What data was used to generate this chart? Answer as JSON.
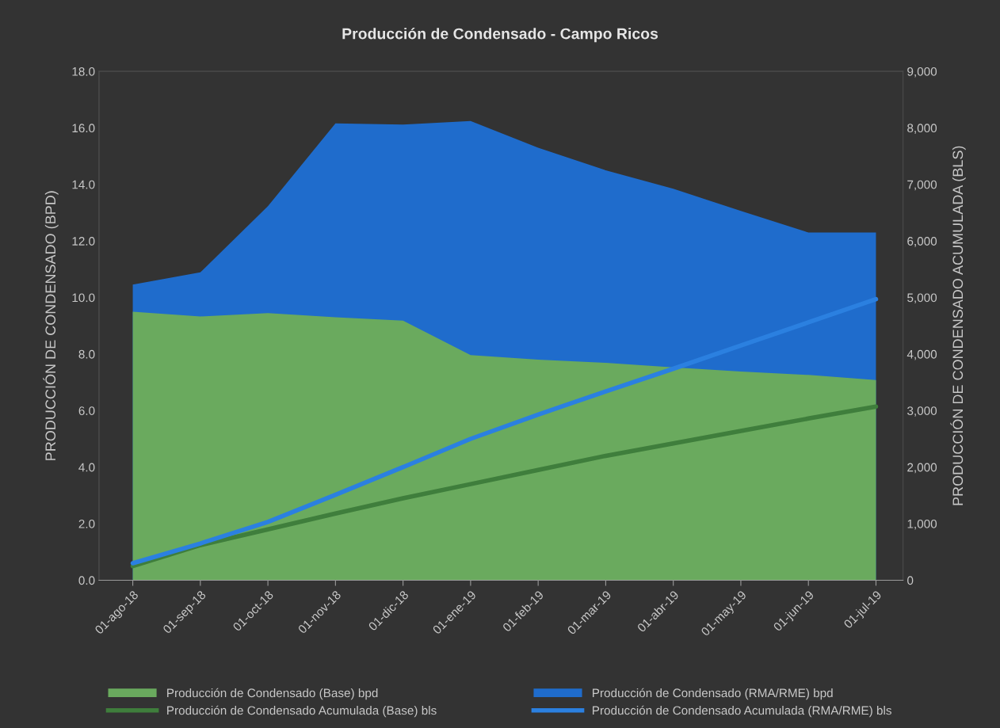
{
  "chart_data": {
    "type": "area",
    "title": "Producción de Condensado - Campo Ricos",
    "ylabel": "PRODUCCIÓN DE CONDENSADO (BPD)",
    "y2label": "PRODUCCIÓN DE CONDENSADO ACUMULADA (BLS)",
    "categories": [
      "01-ago-18",
      "01-sep-18",
      "01-oct-18",
      "01-nov-18",
      "01-dic-18",
      "01-ene-19",
      "01-feb-19",
      "01-mar-19",
      "01-abr-19",
      "01-may-19",
      "01-jun-19",
      "01-jul-19"
    ],
    "series": [
      {
        "name": "Producción de Condensado (Base) bpd",
        "color": "#6aaa5e",
        "values": [
          9.5,
          9.33,
          9.45,
          9.3,
          9.18,
          7.96,
          7.8,
          7.69,
          7.53,
          7.38,
          7.26,
          7.08
        ]
      },
      {
        "name": "Producción de Condensado (RMA/RME) bpd",
        "color": "#1f6ccc",
        "values": [
          10.46,
          10.89,
          13.23,
          16.16,
          16.12,
          16.24,
          15.3,
          14.5,
          13.85,
          13.06,
          12.3,
          12.3
        ]
      },
      {
        "name": "Producción de Condensado Acumulada (Base) bls",
        "type": "line",
        "axis": "y2",
        "color": "#3f7e3c",
        "values": [
          250,
          620,
          900,
          1180,
          1450,
          1700,
          1950,
          2200,
          2420,
          2640,
          2860,
          3070
        ]
      },
      {
        "name": "Producción de Condensado Acumulada (RMA/RME) bls",
        "type": "line",
        "axis": "y2",
        "color": "#2b80e0",
        "values": [
          300,
          650,
          1030,
          1510,
          2000,
          2500,
          2930,
          3340,
          3740,
          4150,
          4560,
          4970
        ]
      }
    ],
    "ylim": [
      0,
      18
    ],
    "yticks": [
      {
        "value": 0,
        "label": "0.0"
      },
      {
        "value": 2,
        "label": "2.0"
      },
      {
        "value": 4,
        "label": "4.0"
      },
      {
        "value": 6,
        "label": "6.0"
      },
      {
        "value": 8,
        "label": "8.0"
      },
      {
        "value": 10,
        "label": "10.0"
      },
      {
        "value": 12,
        "label": "12.0"
      },
      {
        "value": 14,
        "label": "14.0"
      },
      {
        "value": 16,
        "label": "16.0"
      },
      {
        "value": 18,
        "label": "18.0"
      }
    ],
    "y2lim": [
      0,
      9000
    ],
    "y2ticks": [
      0,
      {
        "value": 1000,
        "label": "1,000"
      },
      {
        "value": 2000,
        "label": "2,000"
      },
      {
        "value": 3000,
        "label": "3,000"
      },
      {
        "value": 4000,
        "label": "4,000"
      },
      {
        "value": 5000,
        "label": "5,000"
      },
      {
        "value": 6000,
        "label": "6,000"
      },
      {
        "value": 7000,
        "label": "7,000"
      },
      {
        "value": 8000,
        "label": "8,000"
      },
      {
        "value": 9000,
        "label": "9,000"
      }
    ],
    "grid": false,
    "legend": "bottom",
    "marker": "none"
  }
}
